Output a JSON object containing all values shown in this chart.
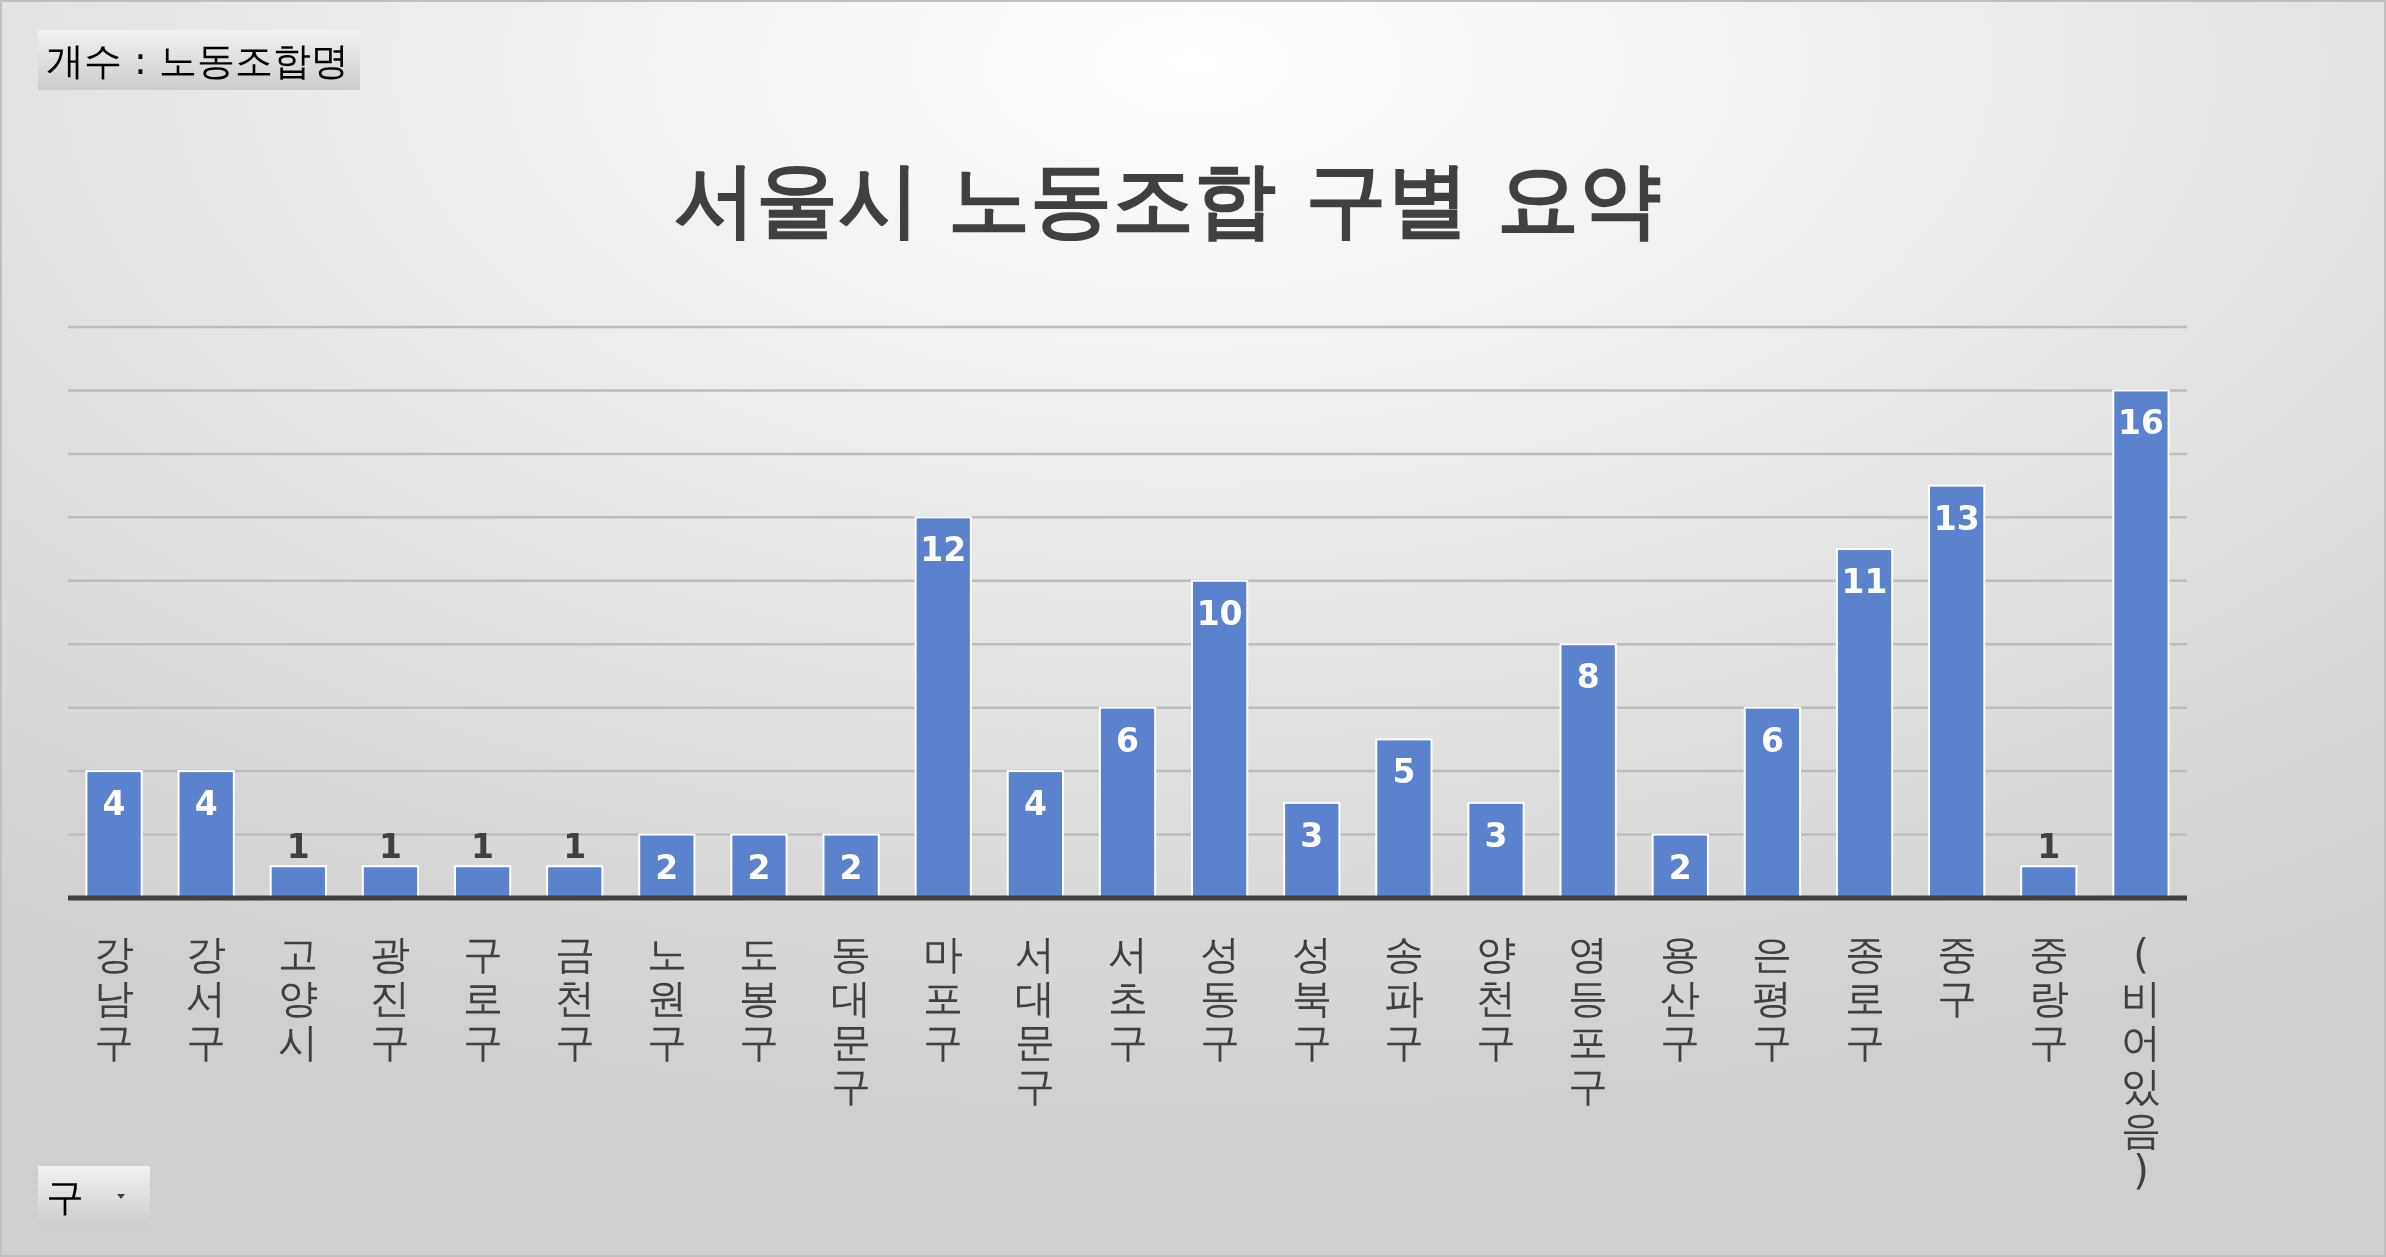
{
  "chart_data": {
    "type": "bar",
    "title": "서울시 노동조합 구별 요약",
    "categories": [
      "강남구",
      "강서구",
      "고양시",
      "광진구",
      "구로구",
      "금천구",
      "노원구",
      "도봉구",
      "동대문구",
      "마포구",
      "서대문구",
      "서초구",
      "성동구",
      "성북구",
      "송파구",
      "양천구",
      "영등포구",
      "용산구",
      "은평구",
      "종로구",
      "중구",
      "중랑구",
      "(비어 있음)"
    ],
    "values": [
      4,
      4,
      1,
      1,
      1,
      1,
      2,
      2,
      2,
      12,
      4,
      6,
      10,
      3,
      5,
      3,
      8,
      2,
      6,
      11,
      13,
      1,
      16
    ],
    "color": "#5b83cd",
    "ylim": [
      0,
      18
    ],
    "yticks": [
      {
        "value": 0,
        "label": null
      },
      {
        "value": 2,
        "label": null
      },
      {
        "value": 4,
        "label": null
      },
      {
        "value": 6,
        "label": null
      },
      {
        "value": 8,
        "label": null
      },
      {
        "value": 10,
        "label": null
      },
      {
        "value": 12,
        "label": null
      },
      {
        "value": 14,
        "label": null
      },
      {
        "value": 16,
        "label": null
      },
      {
        "value": 18,
        "label": null
      }
    ],
    "grid": "y",
    "tick_labels": "x",
    "data_labels": true,
    "annotations": [
      "개수 : 노동조합명",
      "구"
    ]
  }
}
